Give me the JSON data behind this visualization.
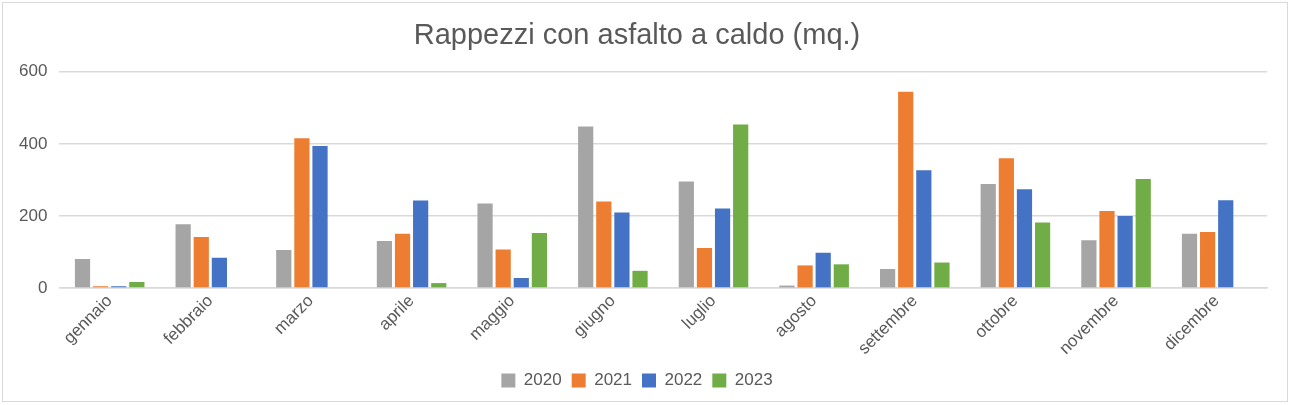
{
  "chart_data": {
    "type": "bar",
    "title": "Rappezzi con asfalto a caldo (mq.)",
    "categories": [
      "gennaio",
      "febbraio",
      "marzo",
      "aprile",
      "maggio",
      "giugno",
      "luglio",
      "agosto",
      "settembre",
      "ottobre",
      "novembre",
      "dicembre"
    ],
    "series": [
      {
        "name": "2020",
        "color": "#a5a5a5",
        "values": [
          81,
          177,
          106,
          131,
          235,
          448,
          296,
          7,
          53,
          289,
          133,
          151
        ]
      },
      {
        "name": "2021",
        "color": "#ed7d31",
        "values": [
          5,
          142,
          416,
          151,
          107,
          240,
          111,
          63,
          545,
          360,
          214,
          156
        ]
      },
      {
        "name": "2022",
        "color": "#4472c4",
        "values": [
          5,
          84,
          394,
          243,
          28,
          210,
          221,
          98,
          327,
          274,
          200,
          244
        ]
      },
      {
        "name": "2023",
        "color": "#70ad47",
        "values": [
          17,
          null,
          null,
          14,
          153,
          48,
          454,
          66,
          71,
          182,
          303,
          null
        ]
      }
    ],
    "ylim": [
      0,
      600
    ],
    "yticks": [
      0,
      200,
      400,
      600
    ],
    "grid": "y",
    "legend": "bottom"
  }
}
